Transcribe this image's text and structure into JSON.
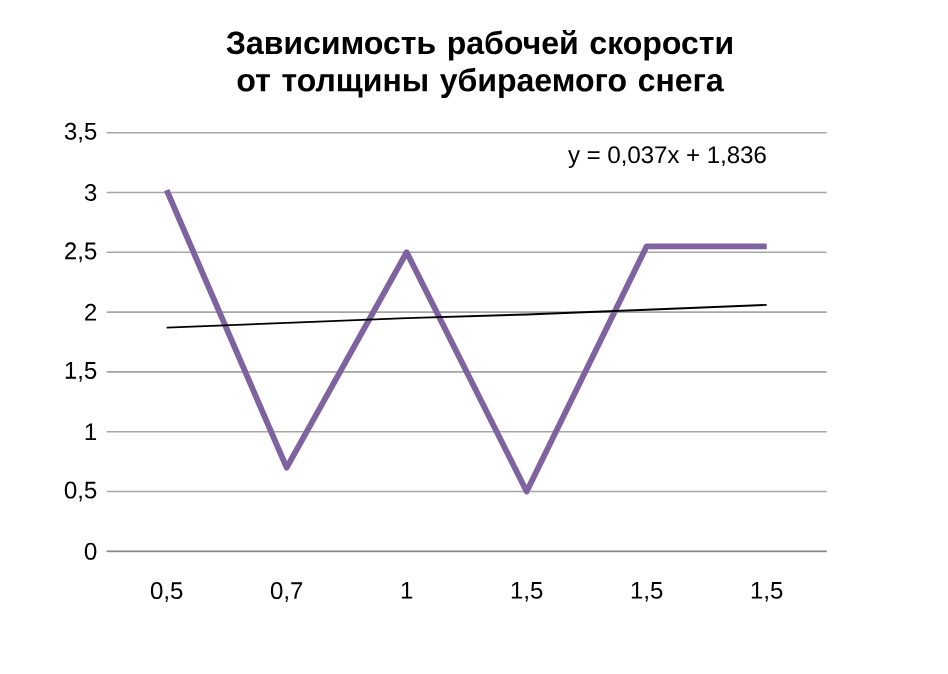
{
  "chart_data": {
    "type": "line",
    "title": "Зависимость рабочей скорости от толщины убираемого снега",
    "categories": [
      "0,5",
      "0,7",
      "1",
      "1,5",
      "1,5",
      "1,5"
    ],
    "series": [
      {
        "color": "#7f63a1",
        "values": [
          3.02,
          0.7,
          2.5,
          0.5,
          2.55,
          2.55
        ]
      },
      {
        "color": "#000000",
        "values": [
          1.87,
          1.91,
          1.95,
          1.98,
          2.02,
          2.06
        ]
      }
    ],
    "ylim": [
      0,
      3.5
    ],
    "yticks": [
      0,
      {
        "value": 0.5,
        "label": "0,5"
      },
      1,
      {
        "value": 1.5,
        "label": "1,5"
      },
      2,
      {
        "value": 2.5,
        "label": "2,5"
      },
      3,
      {
        "value": 3.5,
        "label": "3,5"
      }
    ],
    "grid": "y",
    "marker": "none",
    "line_style": "solid",
    "annotations": [
      "y = 0,037x  + 1,836"
    ]
  }
}
